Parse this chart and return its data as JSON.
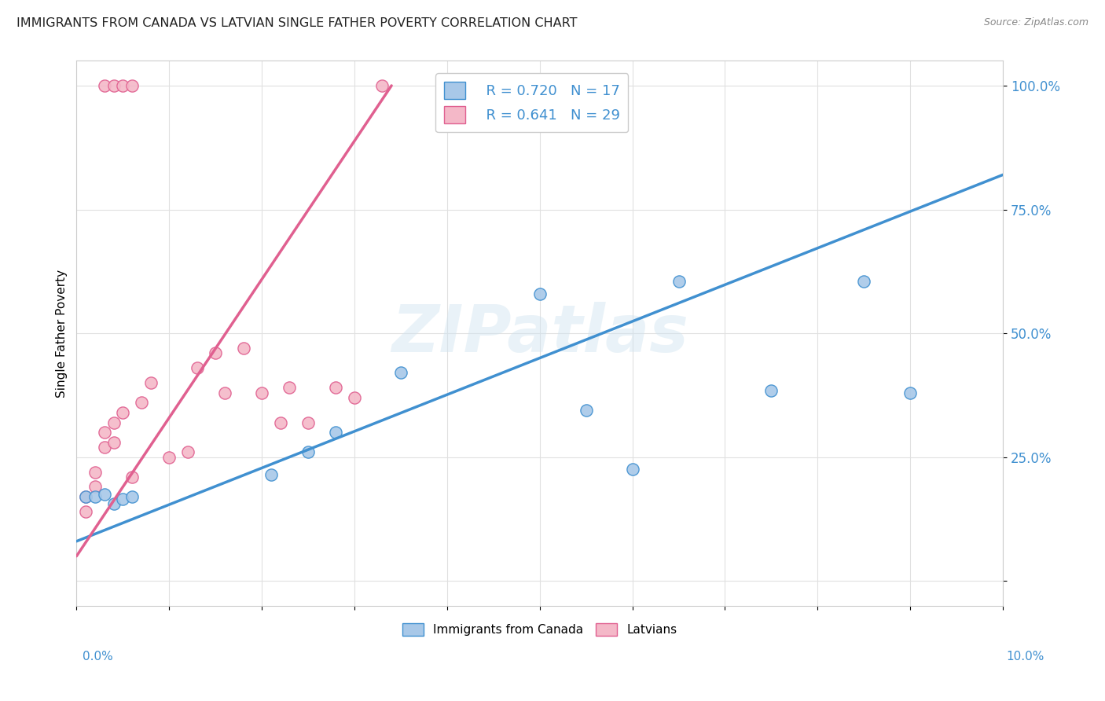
{
  "title": "IMMIGRANTS FROM CANADA VS LATVIAN SINGLE FATHER POVERTY CORRELATION CHART",
  "source": "Source: ZipAtlas.com",
  "ylabel": "Single Father Poverty",
  "y_ticks": [
    0.0,
    0.25,
    0.5,
    0.75,
    1.0
  ],
  "y_tick_labels": [
    "",
    "25.0%",
    "50.0%",
    "75.0%",
    "100.0%"
  ],
  "x_range": [
    0.0,
    0.1
  ],
  "y_range": [
    -0.05,
    1.05
  ],
  "canada_R": 0.72,
  "canada_N": 17,
  "latvian_R": 0.641,
  "latvian_N": 29,
  "canada_color": "#a8c8e8",
  "latvian_color": "#f4b8c8",
  "canada_line_color": "#4090d0",
  "latvian_line_color": "#e06090",
  "canada_points_x": [
    0.001,
    0.002,
    0.003,
    0.004,
    0.005,
    0.006,
    0.021,
    0.025,
    0.028,
    0.035,
    0.05,
    0.055,
    0.06,
    0.065,
    0.075,
    0.085,
    0.09
  ],
  "canada_points_y": [
    0.17,
    0.17,
    0.175,
    0.155,
    0.165,
    0.17,
    0.215,
    0.26,
    0.3,
    0.42,
    0.58,
    0.345,
    0.225,
    0.605,
    0.385,
    0.605,
    0.38
  ],
  "latvian_points_x": [
    0.001,
    0.001,
    0.002,
    0.002,
    0.003,
    0.003,
    0.004,
    0.004,
    0.005,
    0.006,
    0.007,
    0.008,
    0.01,
    0.012,
    0.013,
    0.015,
    0.016,
    0.018,
    0.02,
    0.022,
    0.023,
    0.025,
    0.028,
    0.03,
    0.033,
    0.003,
    0.004,
    0.005,
    0.006
  ],
  "latvian_points_y": [
    0.17,
    0.14,
    0.22,
    0.19,
    0.27,
    0.3,
    0.32,
    0.28,
    0.34,
    0.21,
    0.36,
    0.4,
    0.25,
    0.26,
    0.43,
    0.46,
    0.38,
    0.47,
    0.38,
    0.32,
    0.39,
    0.32,
    0.39,
    0.37,
    1.0,
    1.0,
    1.0,
    1.0,
    1.0
  ],
  "latvian_line_x1": 0.0,
  "latvian_line_y1": 0.05,
  "latvian_line_x2": 0.034,
  "latvian_line_y2": 1.0,
  "canada_line_x1": 0.0,
  "canada_line_y1": 0.08,
  "canada_line_x2": 0.1,
  "canada_line_y2": 0.82,
  "watermark": "ZIPatlas",
  "background_color": "#ffffff",
  "grid_color": "#e0e0e0"
}
